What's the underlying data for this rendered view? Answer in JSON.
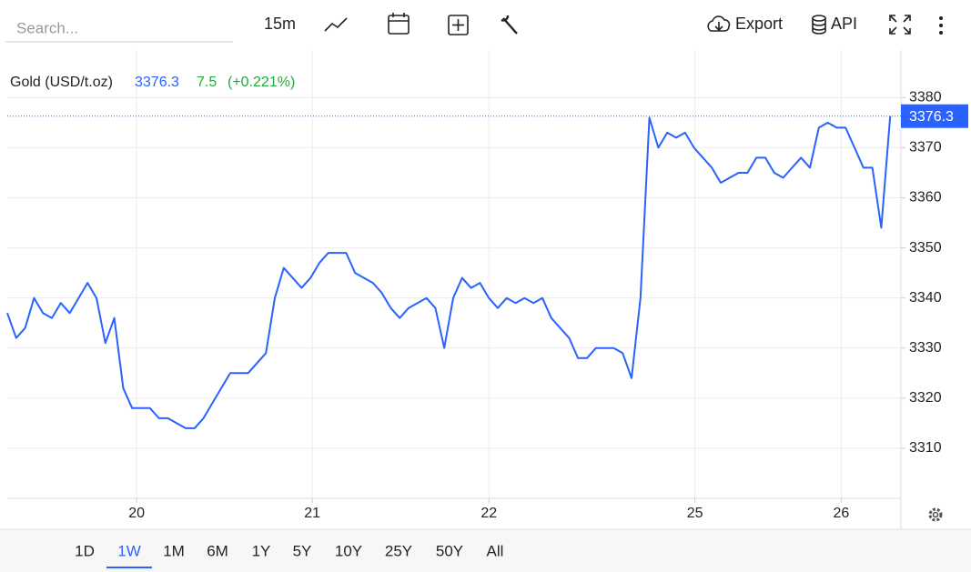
{
  "toolbar": {
    "search_placeholder": "Search...",
    "interval": "15m",
    "export": "Export",
    "api": "API"
  },
  "chart_data": {
    "type": "line",
    "title": "Gold (USD/t.oz)",
    "change": "7.5",
    "change_pct": "(+0.221%)",
    "color": "#2962ff",
    "values": [
      3337,
      3332,
      3334,
      3340,
      3337,
      3336,
      3339,
      3337,
      3340,
      3343,
      3340,
      3331,
      3336,
      3322,
      3318,
      3318,
      3318,
      3316,
      3316,
      3315,
      3314,
      3314,
      3316,
      3319,
      3322,
      3325,
      3325,
      3325,
      3327,
      3329,
      3340,
      3346,
      3344,
      3342,
      3344,
      3347,
      3349,
      3349,
      3349,
      3345,
      3344,
      3343,
      3341,
      3338,
      3336,
      3338,
      3339,
      3340,
      3338,
      3330,
      3340,
      3344,
      3342,
      3343,
      3340,
      3338,
      3340,
      3339,
      3340,
      3339,
      3340,
      3336,
      3334,
      3332,
      3328,
      3328,
      3330,
      3330,
      3330,
      3329,
      3324,
      3340,
      3376,
      3370,
      3373,
      3372,
      3373,
      3370,
      3368,
      3366,
      3363,
      3364,
      3365,
      3365,
      3368,
      3368,
      3365,
      3364,
      3366,
      3368,
      3366,
      3374,
      3375,
      3374,
      3374,
      3370,
      3366,
      3366,
      3354,
      3376.3
    ],
    "xlim": [
      0,
      100.2
    ],
    "xticks": [
      {
        "value": 14.5,
        "label": "20"
      },
      {
        "value": 34.2,
        "label": "21"
      },
      {
        "value": 54,
        "label": "22"
      },
      {
        "value": 77.1,
        "label": "25"
      },
      {
        "value": 93.5,
        "label": "26"
      }
    ],
    "ylim": [
      3300,
      3389.5
    ],
    "yticks": [
      3310,
      3320,
      3330,
      3340,
      3350,
      3360,
      3370,
      3380
    ],
    "grid": true
  },
  "ranges": {
    "items": [
      "1D",
      "1W",
      "1M",
      "6M",
      "1Y",
      "5Y",
      "10Y",
      "25Y",
      "50Y",
      "All"
    ],
    "selected": 1
  }
}
